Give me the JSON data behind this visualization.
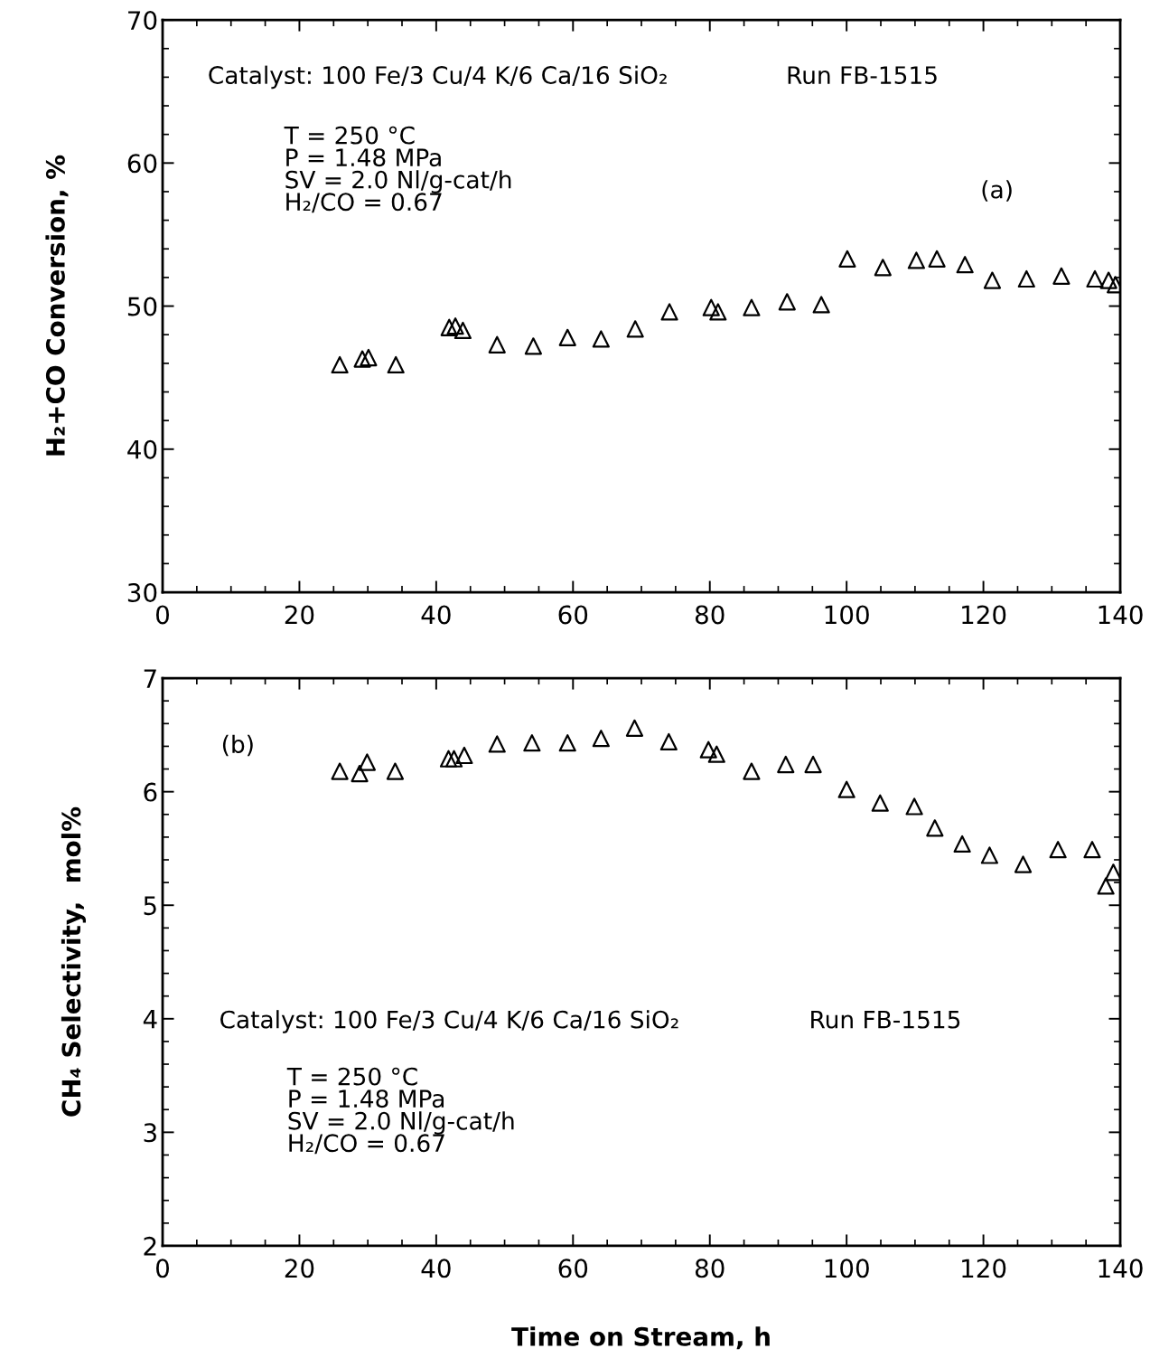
{
  "chart_data": [
    {
      "type": "scatter",
      "ylabel": "H₂+CO Conversion, %",
      "marker": "triangle",
      "grid": false,
      "xlim": [
        0,
        140
      ],
      "xticks": [
        0,
        20,
        40,
        60,
        80,
        100,
        120,
        140
      ],
      "ylim": [
        30,
        70
      ],
      "yticks": [
        30,
        40,
        50,
        60,
        70
      ],
      "annotations": [
        "Catalyst: 100 Fe/3 Cu/4 K/6 Ca/16 SiO₂",
        "Run FB-1515",
        "T = 250 °C\nP = 1.48 MPa\nSV = 2.0 Nl/g-cat/h\nH₂/CO = 0.67",
        "(a)"
      ],
      "series": [
        {
          "color": "#000000",
          "x": [
            25.9,
            29.2,
            30.1,
            34.1,
            41.9,
            42.8,
            43.9,
            48.9,
            54.2,
            59.2,
            64.1,
            69.1,
            74.1,
            80.2,
            81.2,
            86.1,
            91.3,
            96.3,
            100.1,
            105.3,
            110.2,
            113.2,
            117.3,
            121.3,
            126.3,
            131.4,
            136.3,
            138.3,
            139.3
          ],
          "values": [
            45.9,
            46.3,
            46.4,
            45.9,
            48.5,
            48.6,
            48.3,
            47.3,
            47.2,
            47.8,
            47.7,
            48.4,
            49.6,
            49.9,
            49.6,
            49.9,
            50.3,
            50.1,
            53.3,
            52.7,
            53.2,
            53.3,
            52.9,
            51.8,
            51.9,
            52.1,
            51.9,
            51.8,
            51.5
          ]
        }
      ]
    },
    {
      "type": "scatter",
      "xlabel": "Time on Stream, h",
      "ylabel": "CH₄ Selectivity,  mol%",
      "marker": "triangle",
      "grid": false,
      "xlim": [
        0,
        140
      ],
      "xticks": [
        0,
        20,
        40,
        60,
        80,
        100,
        120,
        140
      ],
      "ylim": [
        2,
        7
      ],
      "yticks": [
        2,
        3,
        4,
        5,
        6,
        7
      ],
      "annotations": [
        "Catalyst: 100 Fe/3 Cu/4 K/6 Ca/16 SiO₂",
        "Run FB-1515",
        "T = 250 °C\nP = 1.48 MPa\nSV = 2.0 Nl/g-cat/h\nH₂/CO = 0.67",
        "(b)"
      ],
      "series": [
        {
          "color": "#000000",
          "x": [
            25.9,
            28.8,
            29.9,
            34.0,
            41.8,
            42.6,
            44.1,
            48.9,
            54.0,
            59.2,
            64.1,
            69.0,
            74.0,
            79.8,
            81.0,
            86.1,
            91.1,
            95.1,
            100.0,
            104.9,
            109.9,
            112.9,
            116.9,
            120.9,
            125.8,
            130.9,
            135.9,
            137.9,
            139.0
          ],
          "values": [
            6.18,
            6.16,
            6.26,
            6.18,
            6.29,
            6.29,
            6.32,
            6.42,
            6.43,
            6.43,
            6.47,
            6.56,
            6.44,
            6.37,
            6.33,
            6.18,
            6.24,
            6.24,
            6.02,
            5.9,
            5.87,
            5.68,
            5.54,
            5.44,
            5.36,
            5.49,
            5.49,
            5.17,
            5.29
          ]
        }
      ]
    }
  ]
}
